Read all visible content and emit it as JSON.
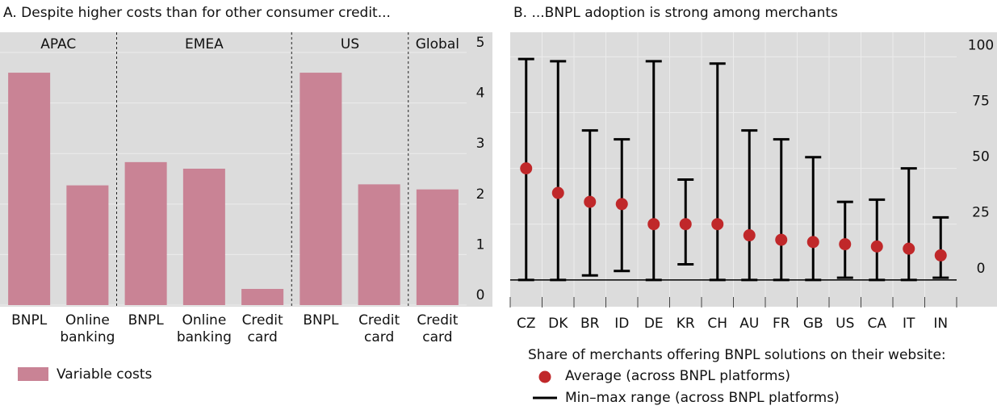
{
  "chart_data": [
    {
      "type": "bar",
      "title": "A. Despite higher costs than for other consumer credit...",
      "groups": [
        {
          "label": "APAC",
          "categories": [
            "BNPL",
            "Online banking"
          ],
          "values": [
            4.6,
            2.37
          ]
        },
        {
          "label": "EMEA",
          "categories": [
            "BNPL",
            "Online banking",
            "Credit card"
          ],
          "values": [
            2.83,
            2.7,
            0.32
          ]
        },
        {
          "label": "US",
          "categories": [
            "BNPL",
            "Credit card"
          ],
          "values": [
            4.6,
            2.39
          ]
        },
        {
          "label": "Global",
          "categories": [
            "Credit card"
          ],
          "values": [
            2.29
          ]
        }
      ],
      "series_name": "Variable costs",
      "color": "#c98395",
      "ylim": [
        0,
        5.4
      ],
      "yticks": [
        0,
        1,
        2,
        3,
        4,
        5
      ],
      "grid": true
    },
    {
      "type": "range",
      "title": "B. ...BNPL adoption is strong among merchants",
      "categories": [
        "CZ",
        "DK",
        "BR",
        "ID",
        "DE",
        "KR",
        "CH",
        "AU",
        "FR",
        "GB",
        "US",
        "CA",
        "IT",
        "IN"
      ],
      "legend_title": "Share of merchants offering BNPL solutions on their website:",
      "series": [
        {
          "name": "Average (across BNPL platforms)",
          "color": "#c0282a",
          "values": [
            50,
            39,
            35,
            34,
            25,
            25,
            25,
            20,
            18,
            17,
            16,
            15,
            14,
            11
          ]
        },
        {
          "name": "Min–max range (across BNPL platforms)",
          "color": "#000000",
          "low": [
            0,
            0,
            2,
            4,
            0,
            7,
            0,
            0,
            0,
            0,
            1,
            0,
            0,
            1
          ],
          "high": [
            99,
            98,
            67,
            63,
            98,
            45,
            97,
            67,
            63,
            55,
            35,
            36,
            50,
            28
          ]
        }
      ],
      "ylim": [
        -12,
        111
      ],
      "yticks": [
        0,
        25,
        50,
        75,
        100
      ],
      "grid": true
    }
  ]
}
